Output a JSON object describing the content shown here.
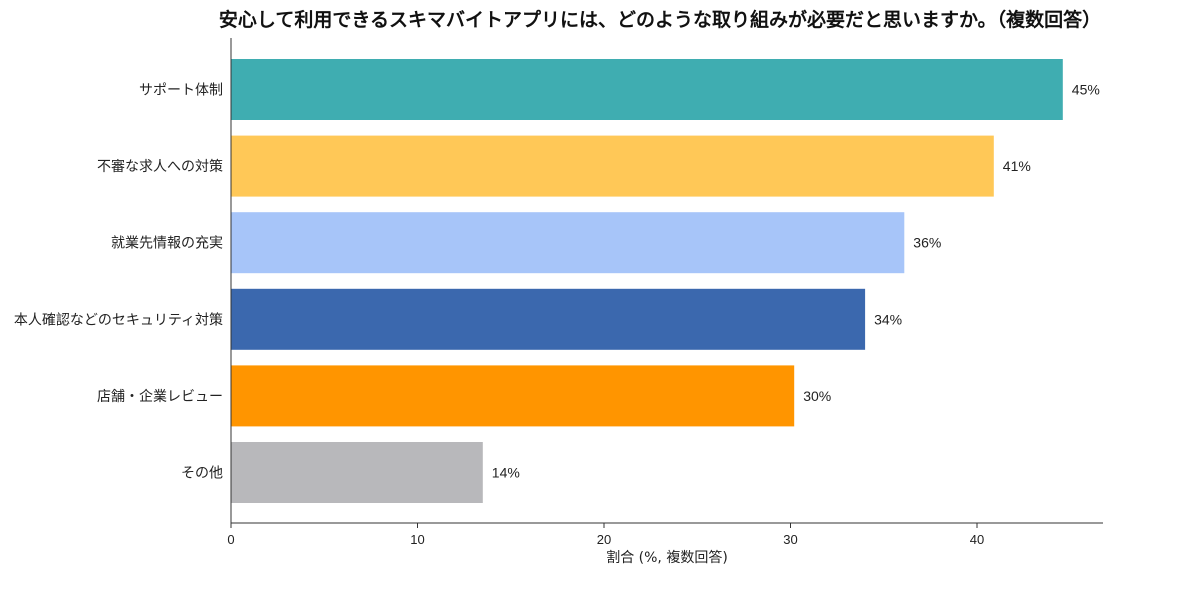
{
  "chart_data": {
    "type": "bar",
    "orientation": "horizontal",
    "title": "安心して利用できるスキマバイトアプリには、どのような取り組みが必要だと思いますか。（複数回答）",
    "xlabel": "割合 (%, 複数回答)",
    "ylabel": "",
    "xlim": [
      0,
      47
    ],
    "xticks": [
      0,
      10,
      20,
      30,
      40
    ],
    "grid": false,
    "categories": [
      "サポート体制",
      "不審な求人への対策",
      "就業先情報の充実",
      "本人確認などのセキュリティ対策",
      "店舗・企業レビュー",
      "その他"
    ],
    "values": [
      45,
      41,
      36,
      34,
      30,
      14
    ],
    "plotted_values": [
      44.6,
      40.9,
      36.1,
      34.0,
      30.2,
      13.5
    ],
    "value_labels": [
      "45%",
      "41%",
      "36%",
      "34%",
      "30%",
      "14%"
    ],
    "colors": [
      "#3fadb1",
      "#ffc857",
      "#a7c5f9",
      "#3b68ae",
      "#ff9500",
      "#b8b8bb"
    ]
  }
}
